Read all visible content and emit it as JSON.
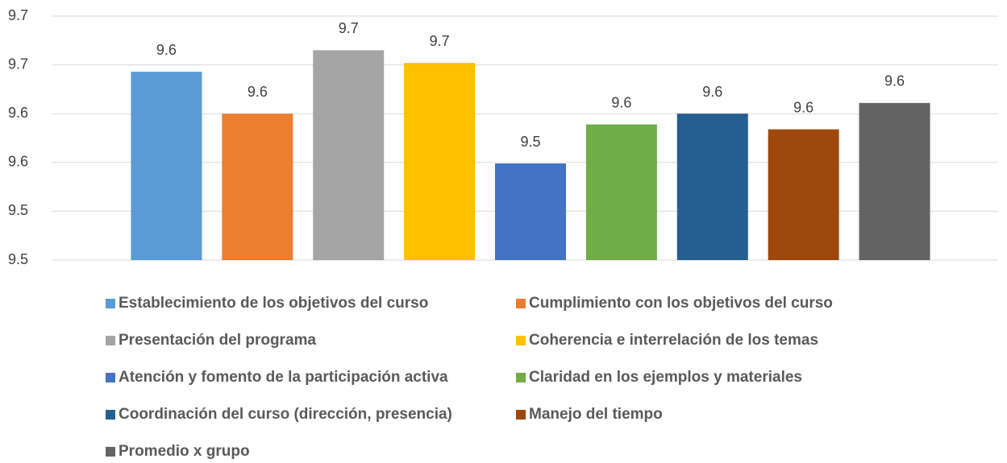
{
  "chart_data": {
    "type": "bar",
    "categories": [
      "Establecimiento de los objetivos del curso",
      "Cumplimiento con los objetivos del curso",
      "Presentación del programa",
      "Coherencia e interrelación de los temas",
      "Atención y fomento de la participación  activa",
      "Claridad en los ejemplos y materiales",
      "Coordinación del curso (dirección, presencia)",
      "Manejo del tiempo",
      "Promedio x grupo"
    ],
    "values": [
      9.643,
      9.6,
      9.665,
      9.652,
      9.549,
      9.589,
      9.6,
      9.584,
      9.611
    ],
    "value_labels": [
      "9.6",
      "9.6",
      "9.7",
      "9.7",
      "9.5",
      "9.6",
      "9.6",
      "9.6",
      "9.6"
    ],
    "colors": [
      "#5b9bd5",
      "#ed7d31",
      "#a5a5a5",
      "#ffc000",
      "#4472c4",
      "#70ad47",
      "#255e91",
      "#9e480e",
      "#636363"
    ],
    "ylim": [
      9.45,
      9.7
    ],
    "yticks": [
      {
        "value": 9.45,
        "label": "9.5"
      },
      {
        "value": 9.5,
        "label": "9.5"
      },
      {
        "value": 9.55,
        "label": "9.6"
      },
      {
        "value": 9.6,
        "label": "9.6"
      },
      {
        "value": 9.65,
        "label": "9.7"
      },
      {
        "value": 9.7,
        "label": "9.7"
      }
    ],
    "grid": true,
    "legend": "bottom"
  }
}
